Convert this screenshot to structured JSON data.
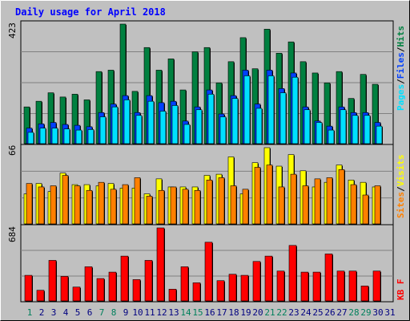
{
  "title": "Daily usage for April 2018",
  "colors": {
    "background": "#c0c0c0",
    "title": "#0000ff",
    "grid": "#808080",
    "hits": "#008040",
    "files": "#0040ff",
    "pages": "#00e0ff",
    "visits": "#ffff00",
    "sites": "#ff8000",
    "kbytes": "#ff0000",
    "weekend_label": "#00805c",
    "weekday_label": "#000080"
  },
  "chart_data": [
    {
      "type": "bar",
      "name": "hits-files-pages",
      "ymax_label": "423",
      "ymax": 423,
      "right_labels": [
        "Pages",
        "Files",
        "Hits"
      ],
      "categories": [
        "1",
        "2",
        "3",
        "4",
        "5",
        "6",
        "7",
        "8",
        "9",
        "10",
        "11",
        "12",
        "13",
        "14",
        "15",
        "16",
        "17",
        "18",
        "19",
        "20",
        "21",
        "22",
        "23",
        "24",
        "25",
        "26",
        "27",
        "28",
        "29",
        "30",
        "31"
      ],
      "series": [
        {
          "name": "Hits",
          "values": [
            130,
            150,
            180,
            165,
            175,
            155,
            255,
            260,
            423,
            185,
            340,
            260,
            300,
            190,
            325,
            340,
            215,
            290,
            375,
            265,
            405,
            320,
            360,
            290,
            250,
            215,
            255,
            160,
            245,
            210,
            0
          ]
        },
        {
          "name": "Files",
          "values": [
            55,
            70,
            75,
            68,
            65,
            60,
            110,
            140,
            170,
            110,
            170,
            145,
            150,
            80,
            130,
            190,
            105,
            170,
            260,
            140,
            260,
            195,
            250,
            130,
            80,
            62,
            130,
            110,
            110,
            75,
            0
          ]
        },
        {
          "name": "Pages",
          "values": [
            40,
            55,
            55,
            52,
            48,
            50,
            95,
            130,
            155,
            100,
            150,
            115,
            135,
            68,
            120,
            175,
            95,
            160,
            240,
            125,
            240,
            180,
            235,
            120,
            75,
            48,
            120,
            100,
            100,
            62,
            0
          ]
        }
      ]
    },
    {
      "type": "bar",
      "name": "visits-sites",
      "ymax_label": "66",
      "ymax": 66,
      "right_labels": [
        "Sites",
        "Visits"
      ],
      "categories": [
        "1",
        "2",
        "3",
        "4",
        "5",
        "6",
        "7",
        "8",
        "9",
        "10",
        "11",
        "12",
        "13",
        "14",
        "15",
        "16",
        "17",
        "18",
        "19",
        "20",
        "21",
        "22",
        "23",
        "24",
        "25",
        "26",
        "27",
        "28",
        "29",
        "30",
        "31"
      ],
      "series": [
        {
          "name": "Visits",
          "values": [
            26,
            35,
            28,
            44,
            34,
            34,
            33,
            35,
            31,
            31,
            26,
            39,
            32,
            32,
            32,
            42,
            43,
            58,
            26,
            53,
            66,
            50,
            60,
            46,
            32,
            36,
            51,
            38,
            36,
            32,
            0
          ]
        },
        {
          "name": "Sites",
          "values": [
            35,
            32,
            33,
            42,
            33,
            29,
            36,
            30,
            34,
            40,
            24,
            29,
            32,
            30,
            29,
            38,
            40,
            33,
            30,
            49,
            51,
            32,
            43,
            33,
            39,
            40,
            47,
            34,
            25,
            33,
            0
          ]
        }
      ]
    },
    {
      "type": "bar",
      "name": "kbytes",
      "ymax_label": "684",
      "ymax": 684,
      "right_labels": [
        "KB F"
      ],
      "categories": [
        "1",
        "2",
        "3",
        "4",
        "5",
        "6",
        "7",
        "8",
        "9",
        "10",
        "11",
        "12",
        "13",
        "14",
        "15",
        "16",
        "17",
        "18",
        "19",
        "20",
        "21",
        "22",
        "23",
        "24",
        "25",
        "26",
        "27",
        "28",
        "29",
        "30",
        "31"
      ],
      "series": [
        {
          "name": "KB F",
          "values": [
            240,
            100,
            380,
            230,
            130,
            320,
            210,
            270,
            420,
            200,
            380,
            684,
            110,
            320,
            170,
            550,
            190,
            250,
            240,
            370,
            420,
            280,
            520,
            270,
            270,
            440,
            280,
            280,
            140,
            280,
            0
          ]
        }
      ]
    }
  ],
  "x_labels": [
    {
      "text": "1",
      "weekend": true
    },
    {
      "text": "2",
      "weekend": false
    },
    {
      "text": "3",
      "weekend": false
    },
    {
      "text": "4",
      "weekend": false
    },
    {
      "text": "5",
      "weekend": false
    },
    {
      "text": "6",
      "weekend": false
    },
    {
      "text": "7",
      "weekend": true
    },
    {
      "text": "8",
      "weekend": true
    },
    {
      "text": "9",
      "weekend": false
    },
    {
      "text": "10",
      "weekend": false
    },
    {
      "text": "11",
      "weekend": false
    },
    {
      "text": "12",
      "weekend": false
    },
    {
      "text": "13",
      "weekend": false
    },
    {
      "text": "14",
      "weekend": true
    },
    {
      "text": "15",
      "weekend": true
    },
    {
      "text": "16",
      "weekend": false
    },
    {
      "text": "17",
      "weekend": false
    },
    {
      "text": "18",
      "weekend": false
    },
    {
      "text": "19",
      "weekend": false
    },
    {
      "text": "20",
      "weekend": false
    },
    {
      "text": "21",
      "weekend": true
    },
    {
      "text": "22",
      "weekend": true
    },
    {
      "text": "23",
      "weekend": false
    },
    {
      "text": "24",
      "weekend": false
    },
    {
      "text": "25",
      "weekend": false
    },
    {
      "text": "26",
      "weekend": false
    },
    {
      "text": "27",
      "weekend": false
    },
    {
      "text": "28",
      "weekend": true
    },
    {
      "text": "29",
      "weekend": true
    },
    {
      "text": "30",
      "weekend": false
    },
    {
      "text": "31",
      "weekend": false
    }
  ]
}
